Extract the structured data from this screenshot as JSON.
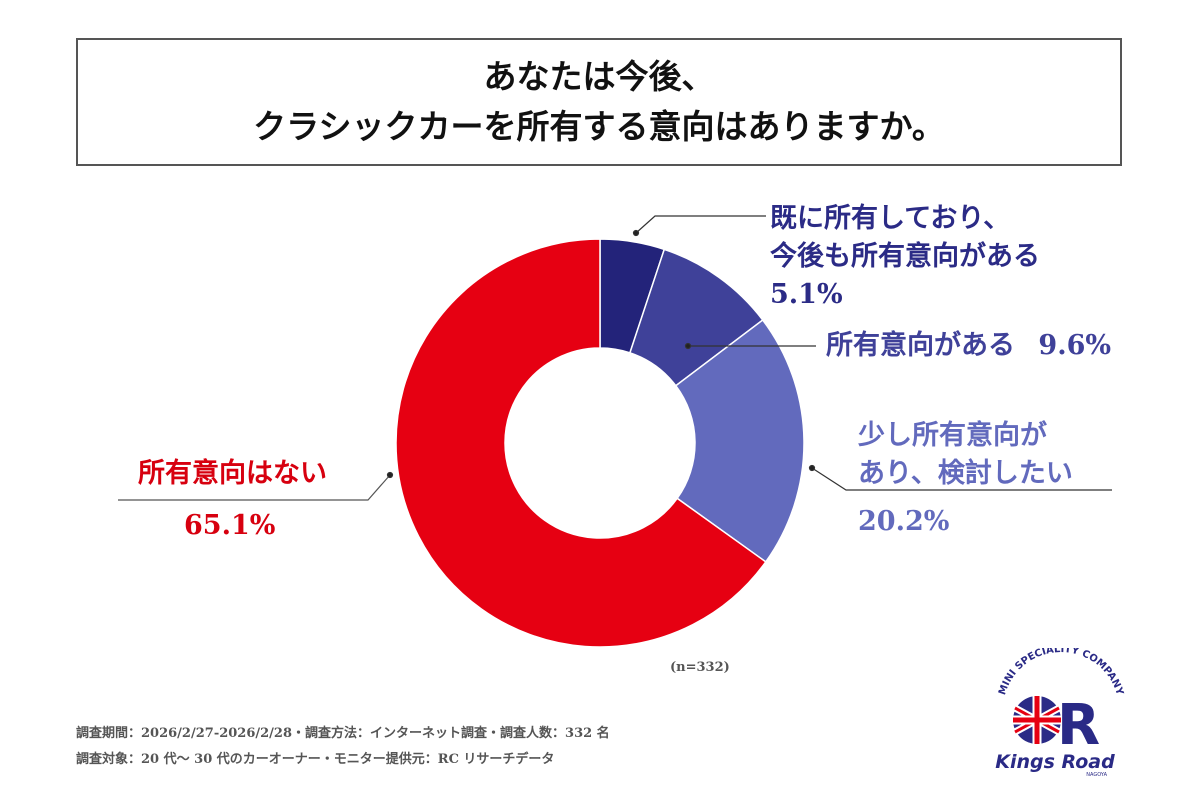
{
  "title_lines": [
    "あなたは今後、",
    "クラシックカーを所有する意向はありますか。"
  ],
  "chart_data": {
    "type": "pie",
    "donut": true,
    "start": "top, clockwise",
    "slices": [
      {
        "label": "既に所有しており、今後も所有意向がある",
        "label_lines": [
          "既に所有しており、",
          "今後も所有意向がある"
        ],
        "value": 5.1,
        "value_text": "5.1%",
        "color": "#23237a",
        "text_color": "#2b2b86"
      },
      {
        "label": "所有意向がある",
        "label_lines": [
          "所有意向がある"
        ],
        "value": 9.6,
        "value_text": "9.6%",
        "color": "#3f4199",
        "text_color": "#3f4199"
      },
      {
        "label": "少し所有意向があり、検討したい",
        "label_lines": [
          "少し所有意向が",
          "あり、検討したい"
        ],
        "value": 20.2,
        "value_text": "20.2%",
        "color": "#626abd",
        "text_color": "#626abd"
      },
      {
        "label": "所有意向はない",
        "label_lines": [
          "所有意向はない"
        ],
        "value": 65.1,
        "value_text": "65.1%",
        "color": "#e60012",
        "text_color": "#d7000f"
      }
    ]
  },
  "sample_note": "(n=332)",
  "footer": [
    "調査期間：2026/2/27-2026/2/28・調査方法：インターネット調査・調査人数：332 名",
    "調査対象：20 代～ 30 代のカーオーナー・モニター提供元：RC リサーチデータ"
  ],
  "logo": {
    "arc_text": "MINI SPECIALITY COMPANY",
    "name": "Kings Road",
    "sub": "NAGOYA",
    "color": "#2a2a86"
  }
}
